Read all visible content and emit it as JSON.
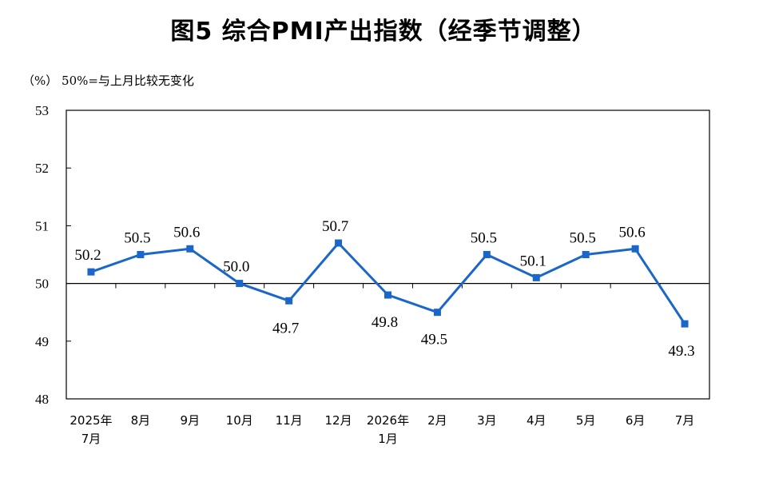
{
  "title": "图5  综合PMI产出指数（经季节调整）",
  "unit_note": "（%） 50%=与上月比较无变化",
  "chart_data": {
    "type": "line",
    "title": "图5  综合PMI产出指数（经季节调整）",
    "categories": [
      [
        "2025年",
        "7月"
      ],
      [
        "8月"
      ],
      [
        "9月"
      ],
      [
        "10月"
      ],
      [
        "11月"
      ],
      [
        "12月"
      ],
      [
        "2026年",
        "1月"
      ],
      [
        "2月"
      ],
      [
        "3月"
      ],
      [
        "4月"
      ],
      [
        "5月"
      ],
      [
        "6月"
      ],
      [
        "7月"
      ]
    ],
    "series": [
      {
        "values": [
          50.2,
          50.5,
          50.6,
          50.0,
          49.7,
          50.7,
          49.8,
          49.5,
          50.5,
          50.1,
          50.5,
          50.6,
          49.3
        ],
        "labels": [
          "50.2",
          "50.5",
          "50.6",
          "50.0",
          "49.7",
          "50.7",
          "49.8",
          "49.5",
          "50.5",
          "50.1",
          "50.5",
          "50.6",
          "49.3"
        ],
        "label_side": [
          "above",
          "above",
          "above",
          "above",
          "below",
          "above",
          "below",
          "below",
          "above",
          "above",
          "above",
          "above",
          "below"
        ],
        "color": "#1a66c9"
      }
    ],
    "ylim": [
      48,
      53
    ],
    "yticks": [
      "48",
      "49",
      "50",
      "51",
      "52",
      "53"
    ],
    "reference_line": 50,
    "grid": false,
    "legend": "none"
  }
}
